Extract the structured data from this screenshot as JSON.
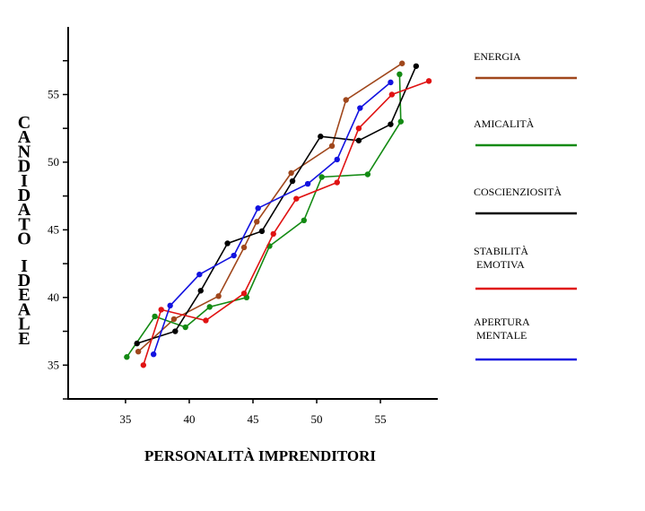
{
  "chart_data": {
    "type": "line",
    "title": "",
    "xlabel": "PERSONALITÀ IMPRENDITORI",
    "ylabel": "CANDIDATO IDEALE",
    "xlim": [
      30.5,
      59.5
    ],
    "ylim": [
      32.5,
      60
    ],
    "x_ticks": [
      35,
      40,
      45,
      50,
      55
    ],
    "y_ticks": [
      35,
      40,
      45,
      50,
      55
    ],
    "grid": false,
    "legend_position": "right",
    "series": [
      {
        "name": "ENERGIA",
        "color": "#a0471c",
        "points": [
          [
            36,
            36
          ],
          [
            38.8,
            38.4
          ],
          [
            42.3,
            40.1
          ],
          [
            44.3,
            43.7
          ],
          [
            45.3,
            45.6
          ],
          [
            48,
            49.2
          ],
          [
            51.2,
            51.2
          ],
          [
            52.3,
            54.6
          ],
          [
            56.7,
            57.3
          ]
        ]
      },
      {
        "name": "AMICALITÀ",
        "color": "#138a13",
        "points": [
          [
            35.1,
            35.6
          ],
          [
            37.3,
            38.6
          ],
          [
            39.7,
            37.8
          ],
          [
            41.6,
            39.3
          ],
          [
            44.5,
            40
          ],
          [
            46.3,
            43.8
          ],
          [
            49,
            45.7
          ],
          [
            50.4,
            48.9
          ],
          [
            54,
            49.1
          ],
          [
            56.6,
            53
          ],
          [
            56.5,
            56.5
          ]
        ]
      },
      {
        "name": "COSCIENZIOSITÀ",
        "color": "#000000",
        "points": [
          [
            35.9,
            36.6
          ],
          [
            38.9,
            37.5
          ],
          [
            40.9,
            40.5
          ],
          [
            43,
            44
          ],
          [
            45.7,
            44.9
          ],
          [
            48.1,
            48.6
          ],
          [
            50.3,
            51.9
          ],
          [
            53.3,
            51.6
          ],
          [
            55.8,
            52.8
          ],
          [
            57.8,
            57.1
          ]
        ]
      },
      {
        "name": "STABILITÀ EMOTIVA",
        "color": "#e01212",
        "points": [
          [
            36.4,
            35
          ],
          [
            37.8,
            39.1
          ],
          [
            41.3,
            38.3
          ],
          [
            44.3,
            40.3
          ],
          [
            46.6,
            44.7
          ],
          [
            48.4,
            47.3
          ],
          [
            51.6,
            48.5
          ],
          [
            53.3,
            52.5
          ],
          [
            55.9,
            55
          ],
          [
            58.8,
            56
          ]
        ]
      },
      {
        "name": "APERTURA MENTALE",
        "color": "#1212e0",
        "points": [
          [
            37.2,
            35.8
          ],
          [
            38.5,
            39.4
          ],
          [
            40.8,
            41.7
          ],
          [
            43.5,
            43.1
          ],
          [
            45.4,
            46.6
          ],
          [
            49.3,
            48.4
          ],
          [
            51.6,
            50.2
          ],
          [
            53.4,
            54
          ],
          [
            55.8,
            55.9
          ]
        ]
      }
    ]
  }
}
